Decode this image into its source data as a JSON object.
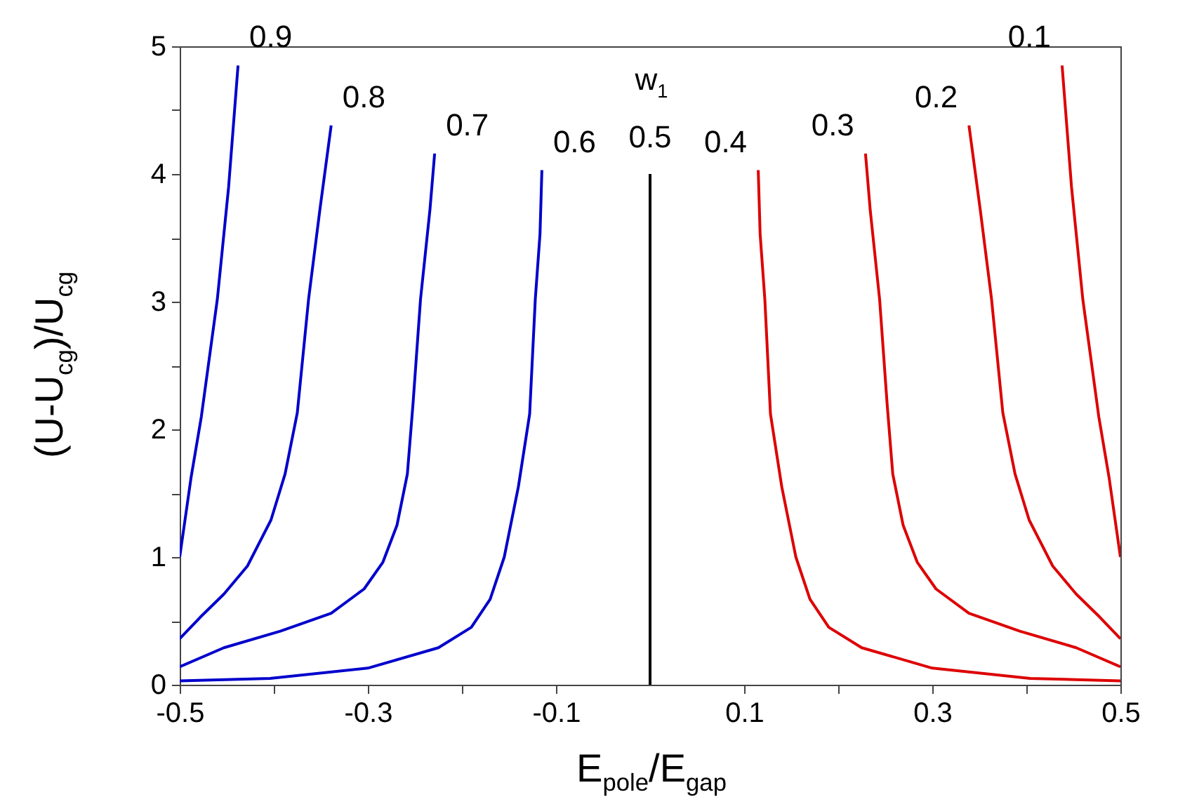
{
  "chart_data": {
    "type": "line",
    "xlabel": "E$_{pole}$/E$_{gap}$",
    "ylabel": "(U-U$_{cg}$)/U$_{cg}$",
    "annotations": [
      "w$_{1}$"
    ],
    "series": [
      {
        "name": "0.9",
        "color": "#0000cc",
        "x": [
          -0.5,
          -0.488,
          -0.477,
          -0.46,
          -0.448,
          -0.438
        ],
        "values": [
          1.0,
          1.62,
          2.1,
          3.02,
          3.9,
          4.85
        ]
      },
      {
        "name": "0.8",
        "color": "#0000cc",
        "x": [
          -0.5,
          -0.478,
          -0.453,
          -0.428,
          -0.403,
          -0.388,
          -0.375,
          -0.363,
          -0.351,
          -0.339
        ],
        "values": [
          0.36,
          0.53,
          0.71,
          0.93,
          1.29,
          1.65,
          2.13,
          3.02,
          3.72,
          4.38
        ]
      },
      {
        "name": "0.7",
        "color": "#0000cc",
        "x": [
          -0.5,
          -0.453,
          -0.393,
          -0.339,
          -0.304,
          -0.284,
          -0.269,
          -0.258,
          -0.252,
          -0.244,
          -0.234,
          -0.229
        ],
        "values": [
          0.14,
          0.29,
          0.42,
          0.56,
          0.75,
          0.96,
          1.25,
          1.65,
          2.2,
          3.02,
          3.72,
          4.16
        ]
      },
      {
        "name": "0.6",
        "color": "#0000cc",
        "x": [
          -0.5,
          -0.404,
          -0.3,
          -0.225,
          -0.19,
          -0.17,
          -0.155,
          -0.14,
          -0.128,
          -0.122,
          -0.117,
          -0.115
        ],
        "values": [
          0.03,
          0.05,
          0.13,
          0.29,
          0.45,
          0.67,
          1.0,
          1.55,
          2.12,
          3.02,
          3.53,
          4.03
        ]
      },
      {
        "name": "0.5",
        "color": "#000000",
        "x": [
          0,
          0
        ],
        "values": [
          0,
          4
        ]
      },
      {
        "name": "0.4",
        "color": "#dd0000",
        "x": [
          0.5,
          0.404,
          0.3,
          0.225,
          0.19,
          0.17,
          0.155,
          0.14,
          0.128,
          0.122,
          0.117,
          0.115
        ],
        "values": [
          0.03,
          0.05,
          0.13,
          0.29,
          0.45,
          0.67,
          1.0,
          1.55,
          2.12,
          3.02,
          3.53,
          4.03
        ]
      },
      {
        "name": "0.3",
        "color": "#dd0000",
        "x": [
          0.5,
          0.453,
          0.393,
          0.339,
          0.304,
          0.284,
          0.269,
          0.258,
          0.252,
          0.244,
          0.234,
          0.229
        ],
        "values": [
          0.14,
          0.29,
          0.42,
          0.56,
          0.75,
          0.96,
          1.25,
          1.65,
          2.2,
          3.02,
          3.72,
          4.16
        ]
      },
      {
        "name": "0.2",
        "color": "#dd0000",
        "x": [
          0.5,
          0.478,
          0.453,
          0.428,
          0.403,
          0.388,
          0.375,
          0.363,
          0.351,
          0.339
        ],
        "values": [
          0.36,
          0.53,
          0.71,
          0.93,
          1.29,
          1.65,
          2.13,
          3.02,
          3.72,
          4.38
        ]
      },
      {
        "name": "0.1",
        "color": "#dd0000",
        "x": [
          0.5,
          0.488,
          0.477,
          0.46,
          0.448,
          0.438
        ],
        "values": [
          1.0,
          1.62,
          2.1,
          3.02,
          3.9,
          4.85
        ]
      }
    ],
    "xlim": [
      -0.5,
      0.5
    ],
    "xticks": [
      -0.5,
      {
        "value": -0.4,
        "label": null
      },
      -0.3,
      {
        "value": -0.2,
        "label": null
      },
      -0.1,
      0.1,
      {
        "value": 0.2,
        "label": null
      },
      0.3,
      {
        "value": 0.4,
        "label": null
      },
      0.5
    ],
    "ylim": [
      0,
      5
    ],
    "yticks": [
      0,
      {
        "value": 0.5,
        "label": null
      },
      1,
      {
        "value": 1.5,
        "label": null
      },
      2,
      {
        "value": 2.5,
        "label": null
      },
      3,
      {
        "value": 3.5,
        "label": null
      },
      4,
      {
        "value": 4.5,
        "label": null
      },
      5
    ],
    "grid": false,
    "legend": false,
    "marker": "none",
    "line_style": "solid"
  }
}
